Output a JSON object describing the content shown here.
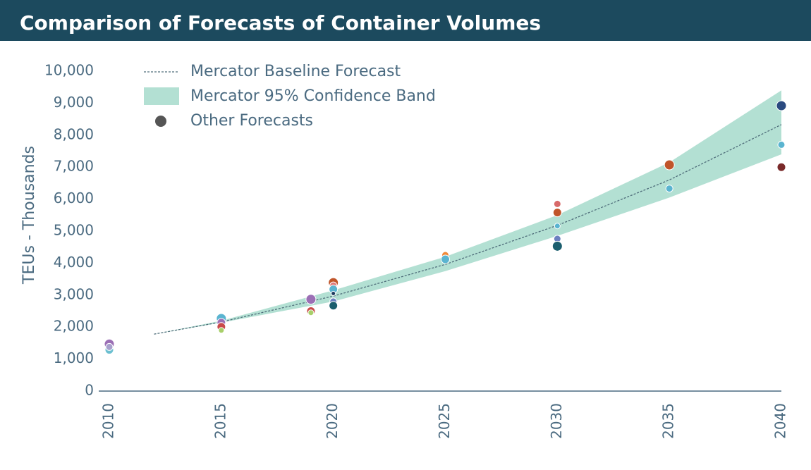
{
  "chart_data": {
    "type": "forecast",
    "title": "Comparison of Forecasts of Container Volumes",
    "y_label": "TEUs - Thousands",
    "xlim": [
      2010,
      2040
    ],
    "xticks": [
      2010,
      2015,
      2020,
      2025,
      2030,
      2035,
      2040
    ],
    "ylim": [
      0,
      10000
    ],
    "yticks": [
      0,
      {
        "value": 1000,
        "label": "1,000"
      },
      {
        "value": 2000,
        "label": "2,000"
      },
      {
        "value": 3000,
        "label": "3,000"
      },
      {
        "value": 4000,
        "label": "4,000"
      },
      {
        "value": 5000,
        "label": "5,000"
      },
      {
        "value": 6000,
        "label": "6,000"
      },
      {
        "value": 7000,
        "label": "7,000"
      },
      {
        "value": 8000,
        "label": "8,000"
      },
      {
        "value": 9000,
        "label": "9,000"
      },
      {
        "value": 10000,
        "label": "10,000"
      }
    ],
    "baseline": {
      "name": "Mercator Baseline Forecast",
      "color": "#4f6d7a",
      "x": [
        2012,
        2015,
        2020,
        2025,
        2030,
        2035,
        2040
      ],
      "values": [
        1780,
        2160,
        2970,
        3960,
        5180,
        6600,
        8330
      ]
    },
    "band": {
      "name": "Mercator 95% Confidence Band",
      "color": "#b3e0d3",
      "x": [
        2012,
        2015,
        2020,
        2025,
        2030,
        2035,
        2040
      ],
      "lower": [
        1780,
        2140,
        2800,
        3750,
        4850,
        6050,
        7400
      ],
      "upper": [
        1780,
        2200,
        3150,
        4200,
        5500,
        7150,
        9400
      ]
    },
    "points": {
      "name": "Other Forecasts",
      "color": "#555555",
      "x": [
        2010,
        2010,
        2010,
        2015,
        2015,
        2015,
        2015,
        2019,
        2019,
        2019,
        2020,
        2020,
        2020,
        2020,
        2020,
        2020,
        2025,
        2025,
        2030,
        2030,
        2030,
        2030,
        2030,
        2035,
        2035,
        2040,
        2040,
        2040
      ],
      "values": [
        1470,
        1290,
        1380,
        2270,
        2140,
        2010,
        1900,
        2870,
        2500,
        2450,
        3390,
        3300,
        3180,
        3050,
        2800,
        2670,
        4250,
        4120,
        5850,
        5580,
        5160,
        4760,
        4530,
        7070,
        6330,
        8920,
        7700,
        7000
      ],
      "sizes": [
        7,
        6,
        5,
        7,
        6,
        6,
        4,
        7,
        6,
        4,
        7,
        5,
        6,
        3,
        5,
        6,
        5,
        6,
        5,
        6,
        4,
        5,
        7,
        7,
        5,
        7,
        5,
        6
      ],
      "colors": [
        "#9b6fb5",
        "#6bbfd0",
        "#a7a0cc",
        "#5ab4d0",
        "#9b6fb5",
        "#c94a4a",
        "#a8cf6a",
        "#9b6fb5",
        "#c94a4a",
        "#a8cf6a",
        "#c0552a",
        "#e07a7a",
        "#5ab4d0",
        "#1c3b5e",
        "#6a80c0",
        "#1b5e6e",
        "#f08a3c",
        "#5ab4d0",
        "#d86a6a",
        "#c0552a",
        "#5ab4d0",
        "#6a80c0",
        "#1b5e6e",
        "#c0552a",
        "#5ab4d0",
        "#2a4a80",
        "#5ab4d0",
        "#7a2a2a"
      ]
    }
  }
}
